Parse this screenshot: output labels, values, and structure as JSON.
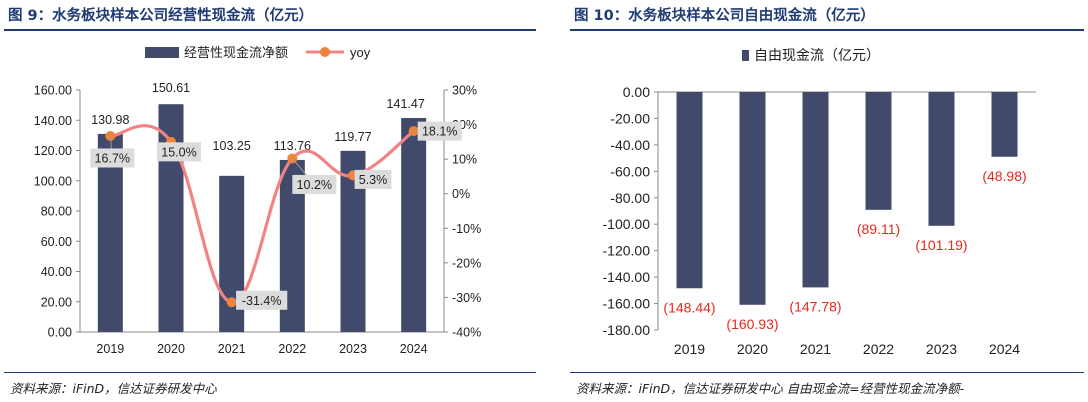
{
  "panels": [
    {
      "title": "图 9：水务板块样本公司经营性现金流（亿元）",
      "source": "资料来源：iFinD，信达证券研发中心"
    },
    {
      "title": "图 10：水务板块样本公司自由现金流（亿元）",
      "source": "资料来源：iFinD，信达证券研发中心   自由现金流=经营性现金流净额-"
    }
  ],
  "colors": {
    "bar": "#414a6b",
    "line": "#f28384",
    "dot": "#f0833a",
    "title": "#1f3b73",
    "neg_label": "#e8281e"
  },
  "chart_data": [
    {
      "type": "bar",
      "categories": [
        "2019",
        "2020",
        "2021",
        "2022",
        "2023",
        "2024"
      ],
      "series": [
        {
          "name": "经营性现金流净额",
          "type": "bar",
          "axis": "left",
          "values": [
            130.98,
            150.61,
            103.25,
            113.76,
            119.77,
            141.47
          ],
          "labels": [
            "130.98",
            "150.61",
            "103.25",
            "113.76",
            "119.77",
            "141.47"
          ]
        },
        {
          "name": "yoy",
          "type": "line",
          "axis": "right",
          "values": [
            16.7,
            15.0,
            -31.4,
            10.2,
            5.3,
            18.1
          ],
          "labels": [
            "16.7%",
            "15.0%",
            "-31.4%",
            "10.2%",
            "5.3%",
            "18.1%"
          ]
        }
      ],
      "ylim": [
        0,
        160
      ],
      "yticks": [
        "0.00",
        "20.00",
        "40.00",
        "60.00",
        "80.00",
        "100.00",
        "120.00",
        "140.00",
        "160.00"
      ],
      "y2lim": [
        -40,
        30
      ],
      "y2ticks": [
        "-40%",
        "-30%",
        "-20%",
        "-10%",
        "0%",
        "10%",
        "20%",
        "30%"
      ],
      "legend_position": "top"
    },
    {
      "type": "bar",
      "categories": [
        "2019",
        "2020",
        "2021",
        "2022",
        "2023",
        "2024"
      ],
      "series": [
        {
          "name": "自由现金流（亿元）",
          "values": [
            -148.44,
            -160.93,
            -147.78,
            -89.11,
            -101.19,
            -48.98
          ],
          "labels": [
            "(148.44)",
            "(160.93)",
            "(147.78)",
            "(89.11)",
            "(101.19)",
            "(48.98)"
          ]
        }
      ],
      "ylim": [
        -180,
        0
      ],
      "yticks": [
        "0.00",
        "-20.00",
        "-40.00",
        "-60.00",
        "-80.00",
        "-100.00",
        "-120.00",
        "-140.00",
        "-160.00",
        "-180.00"
      ],
      "legend_position": "top-left"
    }
  ]
}
